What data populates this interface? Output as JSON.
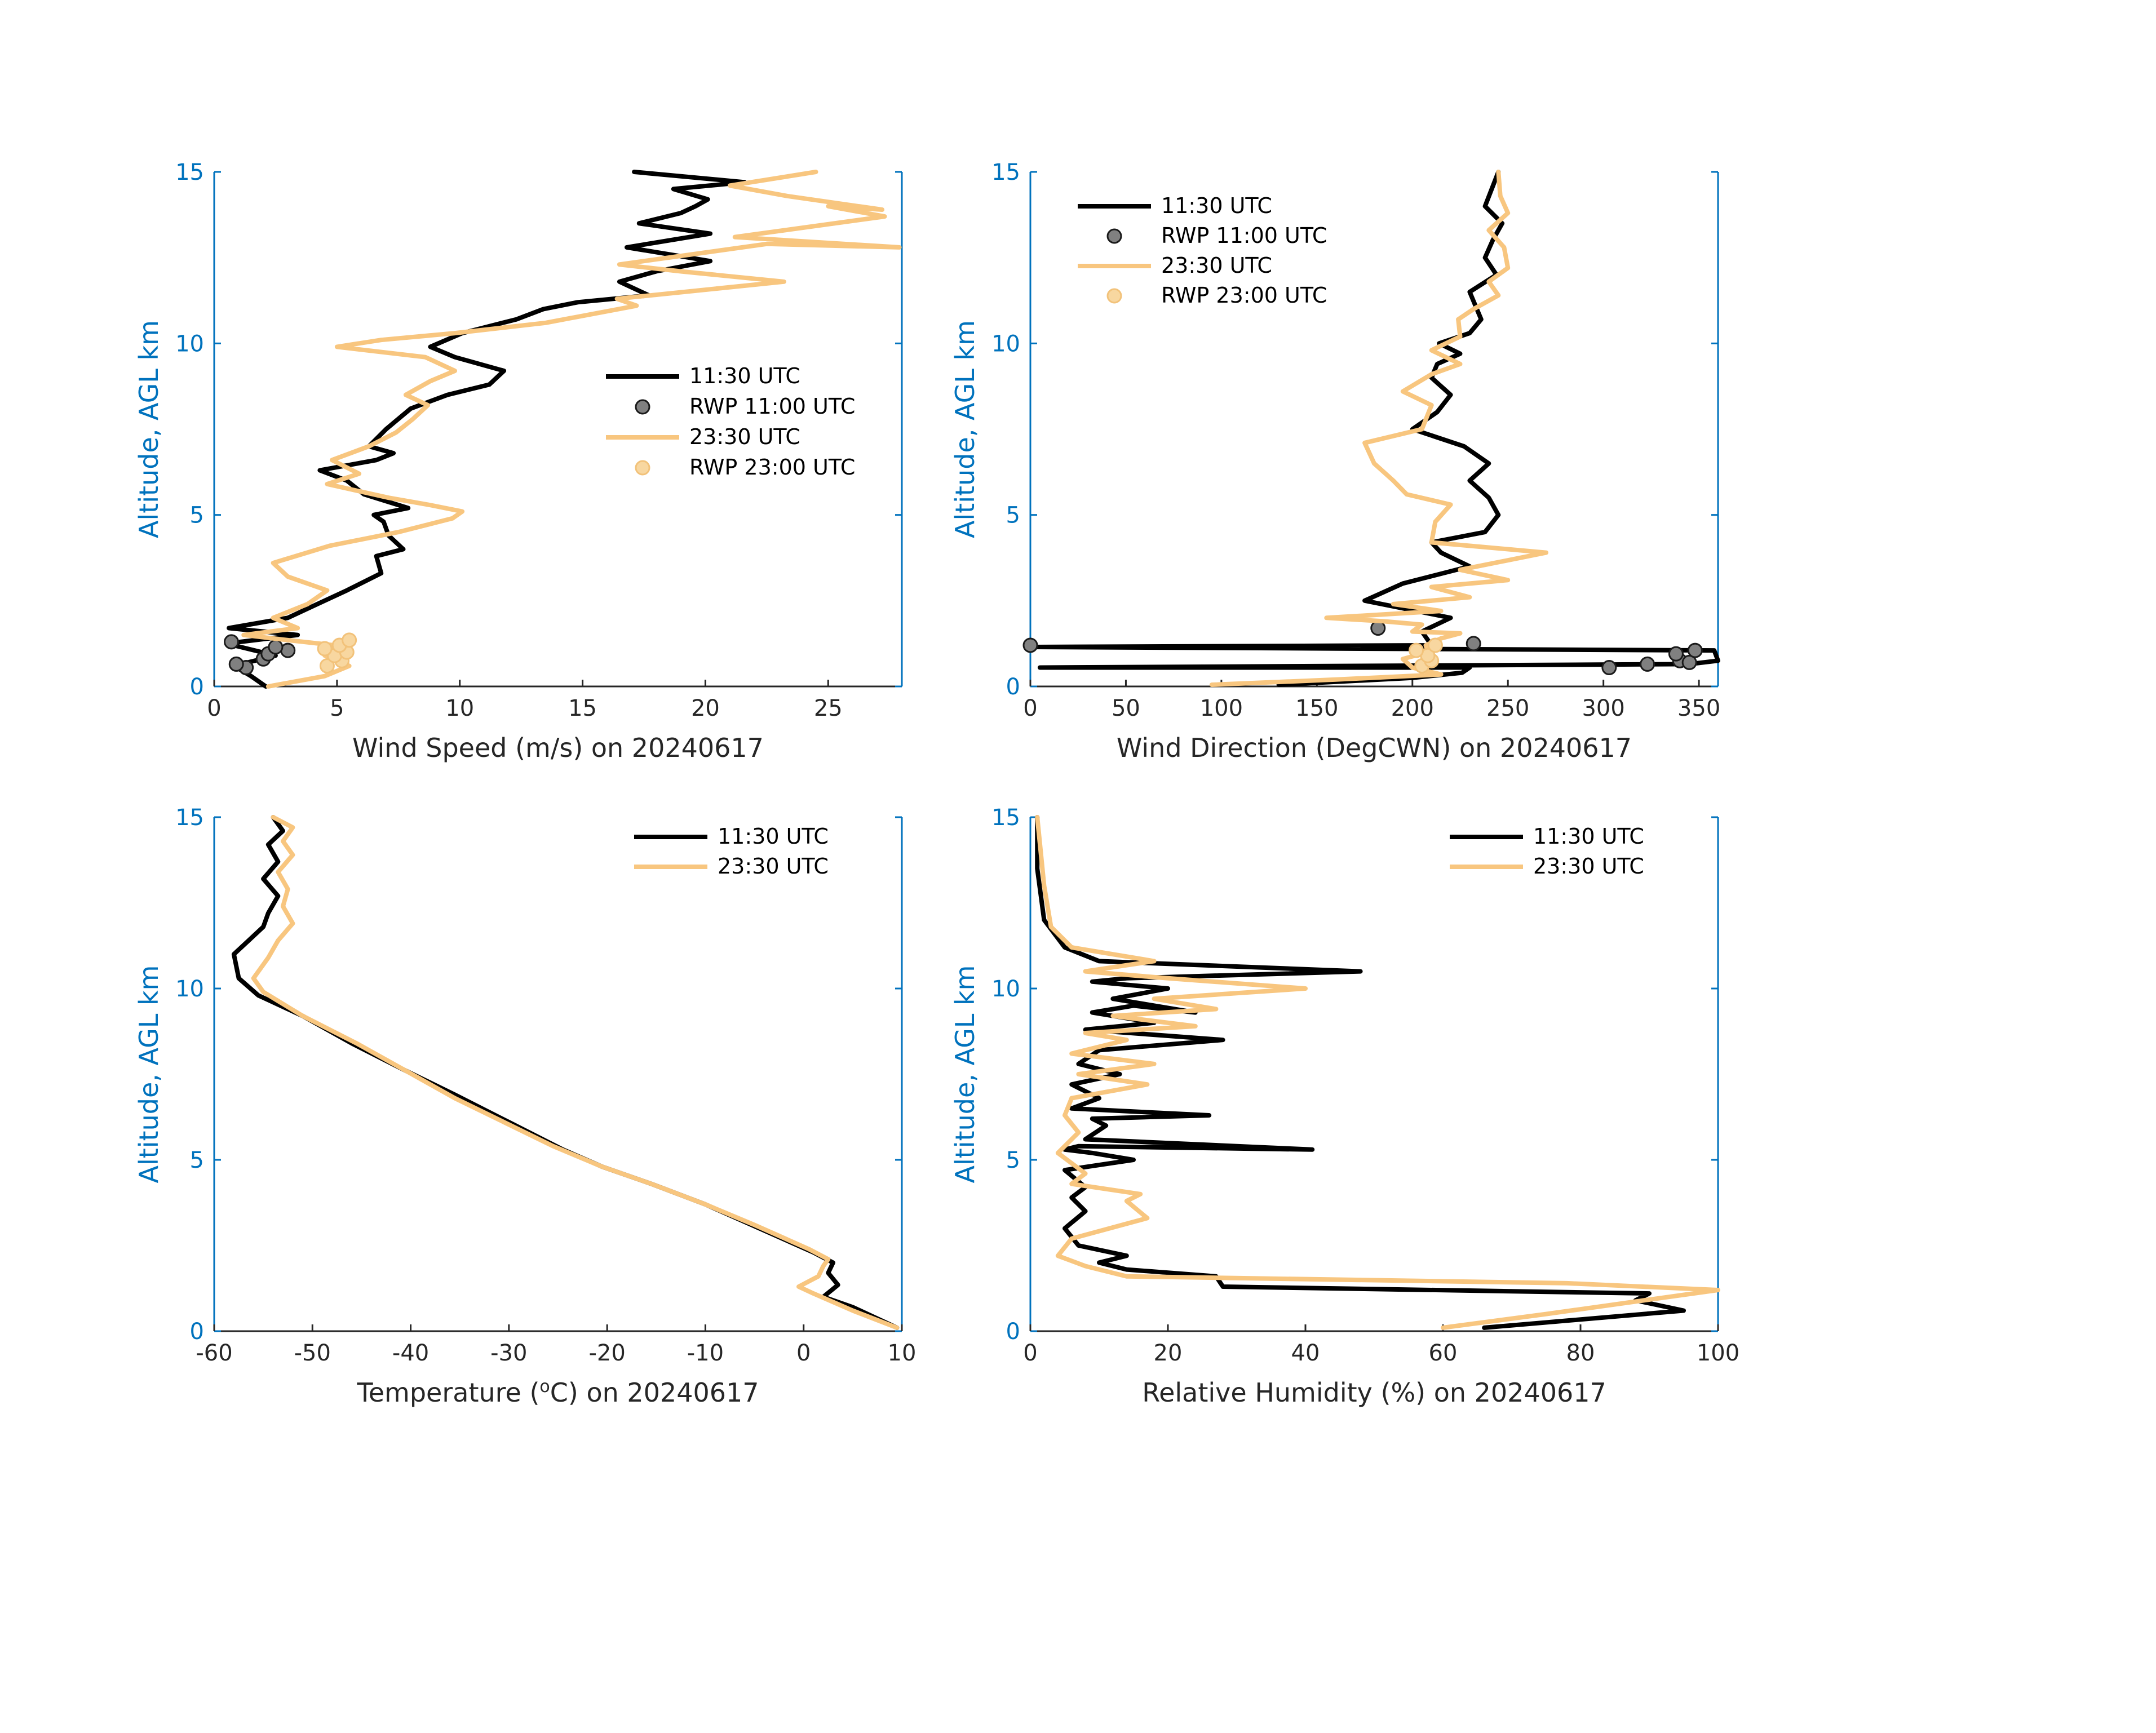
{
  "figure": {
    "date": "20240617"
  },
  "colors": {
    "s1130": "#000000",
    "rwp1100": "#808080",
    "s2330": "#F8C67F",
    "rwp2300": "#F8D7A0",
    "axis": "#0072BD"
  },
  "chart_data": [
    {
      "id": "wind-speed",
      "type": "line",
      "xlabel": "Wind Speed (m/s) on 20240617",
      "ylabel": "Altitude, AGL km",
      "xlim": [
        0,
        28
      ],
      "ylim": [
        0,
        15
      ],
      "xticks": [
        0,
        5,
        10,
        15,
        20,
        25
      ],
      "yticks": [
        0,
        5,
        10,
        15
      ],
      "legend": [
        "11:30 UTC",
        "RWP 11:00 UTC",
        "23:30 UTC",
        "RWP 23:00 UTC"
      ],
      "legend_position": "center-right",
      "series": [
        {
          "name": "11:30 UTC",
          "style": "line",
          "color": "#000000",
          "x": [
            2.1,
            1.5,
            0.8,
            2.5,
            0.5,
            3.4,
            0.6,
            3.0,
            4.2,
            5.4,
            6.8,
            6.6,
            7.7,
            7.1,
            6.9,
            6.5,
            7.9,
            6.1,
            5.4,
            4.3,
            6.6,
            7.3,
            6.3,
            7.0,
            8.0,
            9.5,
            11.2,
            11.8,
            9.8,
            8.8,
            10.1,
            12.3,
            13.4,
            14.8,
            17.7,
            16.5,
            18.0,
            20.2,
            16.8,
            20.2,
            17.3,
            19.0,
            19.6,
            20.1,
            18.7,
            21.6,
            17.1
          ],
          "y": [
            0.0,
            0.3,
            0.6,
            0.9,
            1.25,
            1.5,
            1.7,
            2.0,
            2.4,
            2.8,
            3.3,
            3.8,
            4.0,
            4.4,
            4.8,
            5.0,
            5.2,
            5.6,
            6.0,
            6.3,
            6.6,
            6.8,
            7.0,
            7.5,
            8.1,
            8.5,
            8.8,
            9.2,
            9.6,
            9.9,
            10.3,
            10.7,
            11.0,
            11.2,
            11.4,
            11.8,
            12.1,
            12.4,
            12.8,
            13.2,
            13.5,
            13.8,
            14.0,
            14.2,
            14.5,
            14.7,
            15.0
          ]
        },
        {
          "name": "RWP 11:00 UTC",
          "style": "marker",
          "color": "#808080",
          "x": [
            1.3,
            0.9,
            2.0,
            2.2,
            3.0,
            2.5,
            0.7
          ],
          "y": [
            0.55,
            0.65,
            0.8,
            0.95,
            1.05,
            1.15,
            1.3
          ]
        },
        {
          "name": "23:30 UTC",
          "style": "line",
          "color": "#F8C67F",
          "x": [
            2.2,
            4.5,
            5.5,
            4.5,
            4.9,
            3.0,
            1.2,
            3.4,
            2.4,
            3.8,
            4.6,
            3.0,
            2.4,
            4.7,
            7.5,
            9.7,
            10.1,
            8.7,
            7.1,
            4.6,
            5.9,
            4.8,
            6.3,
            7.4,
            8.1,
            8.7,
            7.8,
            8.8,
            9.8,
            8.6,
            5.0,
            6.8,
            9.8,
            13.5,
            17.2,
            16.4,
            23.2,
            19.0,
            16.5,
            22.5,
            27.9,
            21.2,
            27.3,
            25.0,
            27.2,
            23.3,
            21.0,
            24.5
          ],
          "y": [
            0.0,
            0.3,
            0.6,
            0.9,
            1.2,
            1.35,
            1.5,
            1.7,
            2.0,
            2.4,
            2.8,
            3.2,
            3.6,
            4.1,
            4.5,
            4.9,
            5.1,
            5.3,
            5.5,
            5.9,
            6.2,
            6.6,
            7.0,
            7.4,
            7.8,
            8.2,
            8.5,
            8.9,
            9.2,
            9.6,
            9.9,
            10.1,
            10.3,
            10.6,
            11.1,
            11.3,
            11.8,
            12.1,
            12.3,
            12.9,
            12.8,
            13.1,
            13.7,
            14.0,
            13.9,
            14.3,
            14.6,
            15.0
          ]
        },
        {
          "name": "RWP 23:00 UTC",
          "style": "marker",
          "color": "#F8D7A0",
          "x": [
            4.6,
            5.2,
            4.9,
            5.4,
            4.5,
            5.1,
            5.5
          ],
          "y": [
            0.6,
            0.75,
            0.9,
            1.0,
            1.1,
            1.2,
            1.35
          ]
        }
      ]
    },
    {
      "id": "wind-direction",
      "type": "line",
      "xlabel": "Wind Direction (DegCWN) on 20240617",
      "ylabel": "Altitude, AGL km",
      "xlim": [
        0,
        360
      ],
      "ylim": [
        0,
        15
      ],
      "xticks": [
        0,
        50,
        100,
        150,
        200,
        250,
        300,
        350
      ],
      "yticks": [
        0,
        5,
        10,
        15
      ],
      "legend": [
        "11:30 UTC",
        "RWP 11:00 UTC",
        "23:30 UTC",
        "RWP 23:00 UTC"
      ],
      "legend_position": "top-left",
      "series": [
        {
          "name": "11:30 UTC",
          "style": "line",
          "color": "#000000",
          "x": [
            130,
            200,
            226,
            230,
            5,
            345,
            360,
            358,
            0,
            210,
            205,
            220,
            175,
            195,
            230,
            215,
            210,
            238,
            245,
            240,
            230,
            240,
            227,
            200,
            213,
            220,
            210,
            213,
            225,
            214,
            230,
            236,
            230,
            244,
            238,
            242,
            247,
            238,
            245
          ],
          "y": [
            0.05,
            0.25,
            0.4,
            0.55,
            0.55,
            0.65,
            0.75,
            1.05,
            1.15,
            1.2,
            1.6,
            2.0,
            2.5,
            3.0,
            3.5,
            3.9,
            4.2,
            4.5,
            5.0,
            5.5,
            6.0,
            6.5,
            7.0,
            7.5,
            8.0,
            8.5,
            9.0,
            9.4,
            9.7,
            10.0,
            10.3,
            10.7,
            11.5,
            12.0,
            12.5,
            13.0,
            13.5,
            14.0,
            15.0
          ]
        },
        {
          "name": "RWP 11:00 UTC",
          "style": "marker",
          "color": "#808080",
          "x": [
            303,
            323,
            340,
            345,
            338,
            348,
            0,
            182,
            232
          ],
          "y": [
            0.55,
            0.65,
            0.75,
            0.7,
            0.95,
            1.05,
            1.2,
            1.7,
            1.25
          ],
          "note": "Marker at 0 deg sits on left axis edge"
        },
        {
          "name": "23:30 UTC",
          "style": "line",
          "color": "#F8C67F",
          "x": [
            95,
            160,
            215,
            200,
            195,
            208,
            207,
            215,
            225,
            200,
            205,
            185,
            155,
            215,
            190,
            230,
            210,
            250,
            225,
            270,
            210,
            212,
            220,
            197,
            190,
            180,
            175,
            205,
            210,
            195,
            210,
            225,
            210,
            225,
            224,
            232,
            245,
            240,
            250,
            248,
            240,
            250,
            246,
            245
          ],
          "y": [
            0.05,
            0.2,
            0.35,
            0.55,
            0.8,
            1.0,
            1.2,
            1.4,
            1.55,
            1.6,
            1.8,
            1.9,
            2.0,
            2.2,
            2.4,
            2.6,
            2.9,
            3.1,
            3.4,
            3.9,
            4.2,
            4.8,
            5.3,
            5.6,
            6.0,
            6.5,
            7.1,
            7.5,
            8.2,
            8.6,
            9.1,
            9.4,
            9.8,
            10.2,
            10.7,
            11.0,
            11.4,
            11.8,
            12.2,
            12.8,
            13.3,
            13.8,
            14.3,
            15.0
          ]
        },
        {
          "name": "RWP 23:00 UTC",
          "style": "marker",
          "color": "#F8D7A0",
          "x": [
            205,
            210,
            208,
            202,
            212
          ],
          "y": [
            0.6,
            0.75,
            0.9,
            1.05,
            1.2
          ]
        }
      ]
    },
    {
      "id": "temperature",
      "type": "line",
      "xlabel_prefix": "Temperature (",
      "xlabel_sup": "o",
      "xlabel_suffix": "C) on 20240617",
      "ylabel": "Altitude, AGL km",
      "xlim": [
        -60,
        10
      ],
      "ylim": [
        0,
        15
      ],
      "xticks": [
        -60,
        -50,
        -40,
        -30,
        -20,
        -10,
        0,
        10
      ],
      "yticks": [
        0,
        5,
        10,
        15
      ],
      "legend": [
        "11:30 UTC",
        "23:30 UTC"
      ],
      "legend_position": "top-right",
      "series": [
        {
          "name": "11:30 UTC",
          "color": "#000000",
          "x": [
            9.5,
            5.0,
            2.0,
            3.5,
            2.5,
            3.0,
            1.0,
            -4.5,
            -10.0,
            -15.5,
            -20.5,
            -24.5,
            -30.0,
            -35.5,
            -40.5,
            -46.0,
            -51.0,
            -55.5,
            -57.5,
            -58.0,
            -56.5,
            -55.0,
            -54.5,
            -53.5,
            -55.0,
            -53.5,
            -54.5,
            -53.0,
            -54.0
          ],
          "y": [
            0.1,
            0.7,
            1.0,
            1.35,
            1.7,
            2.0,
            2.3,
            3.0,
            3.7,
            4.3,
            4.8,
            5.3,
            6.1,
            6.9,
            7.6,
            8.4,
            9.2,
            9.8,
            10.3,
            11.0,
            11.4,
            11.8,
            12.2,
            12.7,
            13.2,
            13.7,
            14.2,
            14.6,
            15.0
          ]
        },
        {
          "name": "23:30 UTC",
          "color": "#F8C67F",
          "x": [
            9.5,
            5.0,
            1.0,
            -0.5,
            1.5,
            2.0,
            2.5,
            0.5,
            -5.0,
            -10.0,
            -15.5,
            -20.5,
            -25.5,
            -30.5,
            -35.5,
            -40.5,
            -45.5,
            -51.0,
            -55.0,
            -56.0,
            -54.5,
            -53.5,
            -52.0,
            -53.0,
            -52.5,
            -53.5,
            -52.0,
            -53.0,
            -52.0,
            -54.0
          ],
          "y": [
            0.1,
            0.6,
            1.1,
            1.3,
            1.6,
            1.9,
            2.1,
            2.4,
            3.1,
            3.7,
            4.3,
            4.8,
            5.4,
            6.1,
            6.8,
            7.6,
            8.4,
            9.2,
            9.9,
            10.3,
            10.9,
            11.4,
            11.9,
            12.4,
            12.9,
            13.4,
            13.9,
            14.3,
            14.7,
            15.0
          ]
        }
      ]
    },
    {
      "id": "relative-humidity",
      "type": "line",
      "xlabel": "Relative Humidity (%) on 20240617",
      "ylabel": "Altitude, AGL km",
      "xlim": [
        0,
        100
      ],
      "ylim": [
        0,
        15
      ],
      "xticks": [
        0,
        20,
        40,
        60,
        80,
        100
      ],
      "yticks": [
        0,
        5,
        10,
        15
      ],
      "legend": [
        "11:30 UTC",
        "23:30 UTC"
      ],
      "legend_position": "top-right",
      "series": [
        {
          "name": "11:30 UTC",
          "color": "#000000",
          "x": [
            66,
            95,
            88,
            90,
            28,
            27,
            14,
            10,
            14,
            7,
            5,
            8,
            6,
            8,
            5,
            15,
            9,
            5,
            7,
            41,
            8,
            11,
            9,
            26,
            6,
            10,
            6,
            13,
            7,
            10,
            28,
            8,
            18,
            9,
            15,
            24,
            12,
            20,
            9,
            14,
            48,
            10,
            5,
            2,
            1,
            1
          ],
          "y": [
            0.1,
            0.6,
            0.9,
            1.1,
            1.3,
            1.6,
            1.8,
            2.0,
            2.2,
            2.5,
            3.0,
            3.5,
            3.9,
            4.2,
            4.7,
            5.0,
            5.2,
            5.3,
            5.4,
            5.3,
            5.6,
            6.0,
            6.2,
            6.3,
            6.5,
            6.8,
            7.2,
            7.5,
            7.8,
            8.2,
            8.5,
            8.8,
            9.0,
            9.3,
            9.5,
            9.3,
            9.7,
            10.0,
            10.2,
            10.3,
            10.5,
            10.8,
            11.2,
            12.0,
            13.5,
            15.0
          ]
        },
        {
          "name": "23:30 UTC",
          "color": "#F8C67F",
          "x": [
            60,
            75,
            100,
            78,
            14,
            8,
            4,
            6,
            17,
            14,
            16,
            6,
            8,
            4,
            7,
            5,
            6,
            17,
            7,
            18,
            6,
            14,
            8,
            24,
            12,
            27,
            18,
            40,
            20,
            8,
            18,
            6,
            3,
            2,
            1
          ],
          "y": [
            0.1,
            0.5,
            1.2,
            1.4,
            1.6,
            1.9,
            2.2,
            2.7,
            3.3,
            3.8,
            4.0,
            4.3,
            4.6,
            5.2,
            5.8,
            6.3,
            6.8,
            7.2,
            7.5,
            7.8,
            8.1,
            8.5,
            8.7,
            8.9,
            9.2,
            9.4,
            9.7,
            10.0,
            10.3,
            10.5,
            10.8,
            11.2,
            11.8,
            13.0,
            15.0
          ]
        }
      ]
    }
  ]
}
